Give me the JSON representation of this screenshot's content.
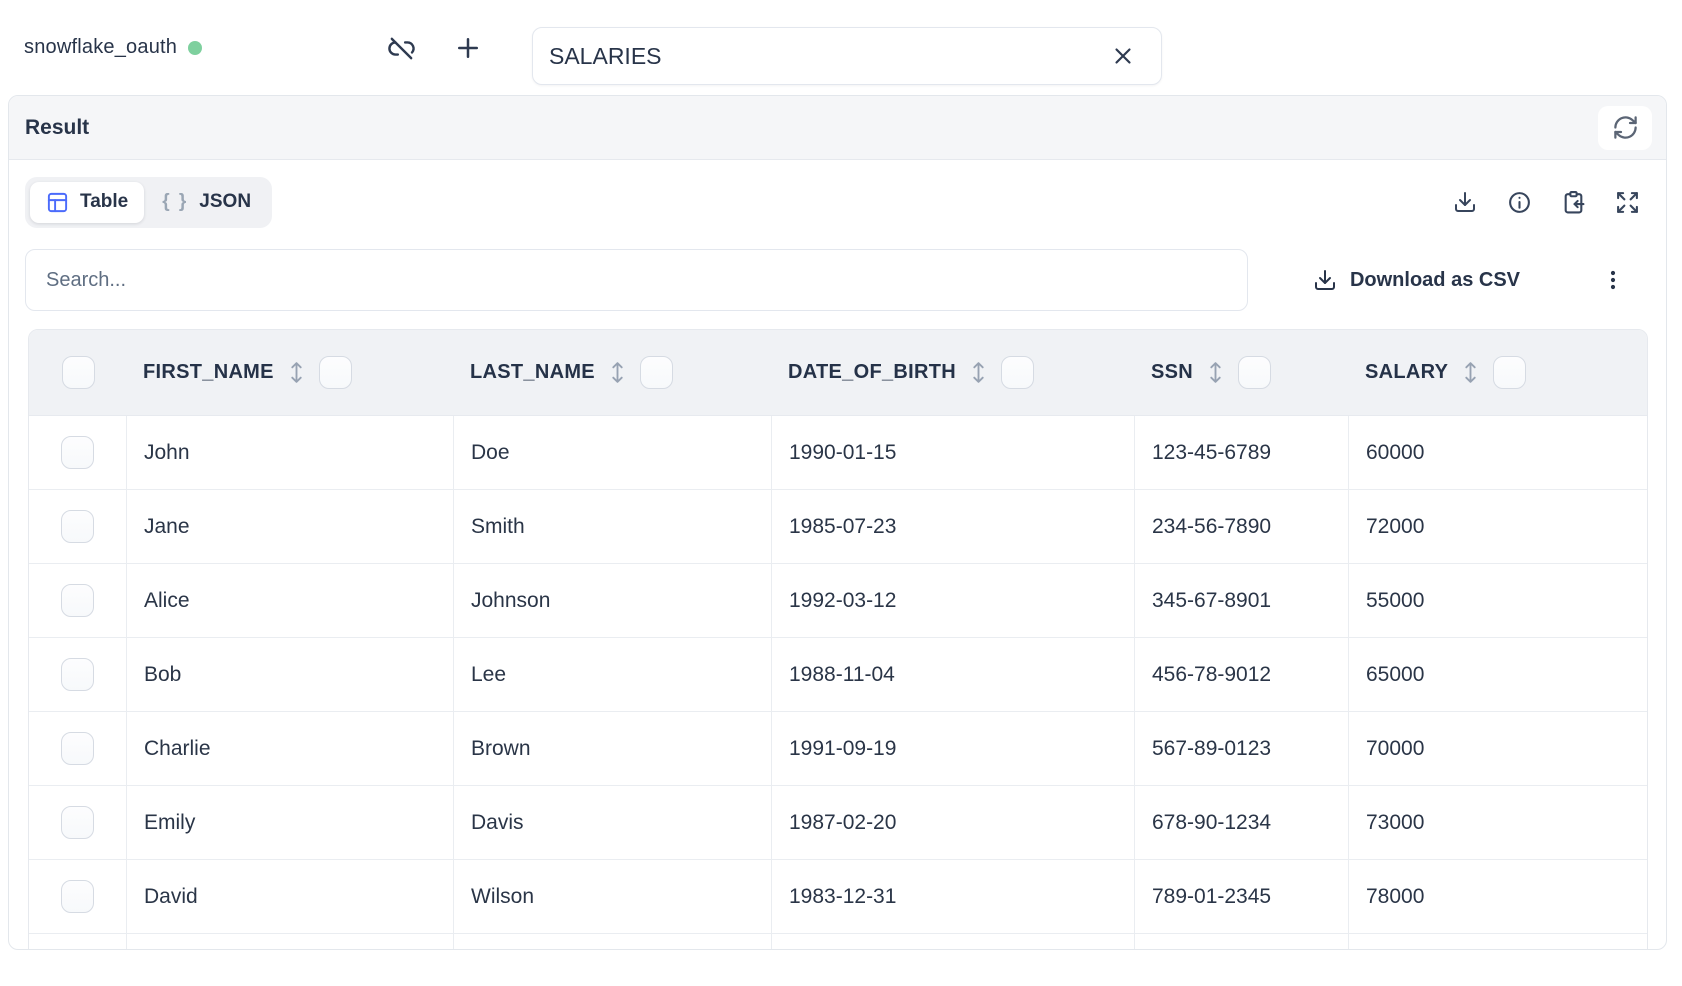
{
  "topbar": {
    "connection_name": "snowflake_oauth",
    "table_input_value": "SALARIES"
  },
  "result_panel": {
    "title": "Result",
    "view_tabs": {
      "table_label": "Table",
      "json_braces": "{ }",
      "json_label": "JSON"
    },
    "search_placeholder": "Search...",
    "download_csv_label": "Download as CSV"
  },
  "table": {
    "columns": [
      "FIRST_NAME",
      "LAST_NAME",
      "DATE_OF_BIRTH",
      "SSN",
      "SALARY"
    ],
    "rows": [
      [
        "John",
        "Doe",
        "1990-01-15",
        "123-45-6789",
        "60000"
      ],
      [
        "Jane",
        "Smith",
        "1985-07-23",
        "234-56-7890",
        "72000"
      ],
      [
        "Alice",
        "Johnson",
        "1992-03-12",
        "345-67-8901",
        "55000"
      ],
      [
        "Bob",
        "Lee",
        "1988-11-04",
        "456-78-9012",
        "65000"
      ],
      [
        "Charlie",
        "Brown",
        "1991-09-19",
        "567-89-0123",
        "70000"
      ],
      [
        "Emily",
        "Davis",
        "1987-02-20",
        "678-90-1234",
        "73000"
      ],
      [
        "David",
        "Wilson",
        "1983-12-31",
        "789-01-2345",
        "78000"
      ]
    ]
  },
  "icons": {
    "connection_status": "green-dot",
    "disconnect": "link-off",
    "add": "plus",
    "clear": "x",
    "refresh": "refresh-cw",
    "table_view": "table-grid",
    "json_view": "curly-braces",
    "download": "download-tray",
    "info": "info-circle",
    "paste": "clipboard-arrow",
    "expand": "expand-arrows",
    "sort": "up-down-arrows",
    "menu": "vertical-dots"
  },
  "colors": {
    "accent_blue": "#4b6bfb",
    "status_green": "#7ed09e",
    "text_dark": "#2a3547",
    "panel_header_bg": "#f5f6f8",
    "table_header_bg": "#f0f2f5"
  }
}
